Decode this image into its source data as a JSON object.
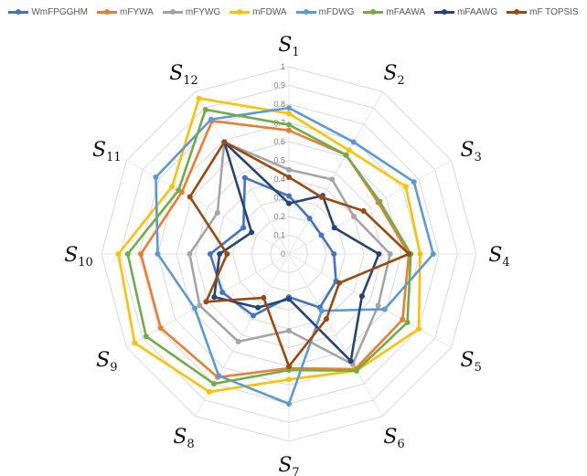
{
  "chart_data": {
    "type": "radar",
    "title": "",
    "categories": [
      "S1",
      "S2",
      "S3",
      "S4",
      "S5",
      "S6",
      "S7",
      "S8",
      "S9",
      "S10",
      "S11",
      "S12"
    ],
    "category_labels": [
      {
        "main": "S",
        "sub": "1"
      },
      {
        "main": "S",
        "sub": "2"
      },
      {
        "main": "S",
        "sub": "3"
      },
      {
        "main": "S",
        "sub": "4"
      },
      {
        "main": "S",
        "sub": "5"
      },
      {
        "main": "S",
        "sub": "6"
      },
      {
        "main": "S",
        "sub": "7"
      },
      {
        "main": "S",
        "sub": "8"
      },
      {
        "main": "S",
        "sub": "9"
      },
      {
        "main": "S",
        "sub": "10"
      },
      {
        "main": "S",
        "sub": "11"
      },
      {
        "main": "S",
        "sub": "12"
      }
    ],
    "rlim": [
      0,
      1
    ],
    "ticks": [
      "0",
      "0.1",
      "0.2",
      "0.3",
      "0.4",
      "0.5",
      "0.6",
      "0.7",
      "0.8",
      "0.9",
      "1"
    ],
    "grid": true,
    "legend_position": "top",
    "series": [
      {
        "name": "WmFPGGHM",
        "color": "#4472C4",
        "values": [
          0.31,
          0.22,
          0.2,
          0.24,
          0.29,
          0.33,
          0.23,
          0.38,
          0.41,
          0.42,
          0.28,
          0.47
        ]
      },
      {
        "name": "mFYWA",
        "color": "#ED7D31",
        "values": [
          0.66,
          0.61,
          0.55,
          0.64,
          0.7,
          0.71,
          0.61,
          0.76,
          0.79,
          0.79,
          0.66,
          0.82
        ]
      },
      {
        "name": "mFYWG",
        "color": "#A5A5A5",
        "values": [
          0.45,
          0.46,
          0.4,
          0.54,
          0.55,
          0.68,
          0.41,
          0.54,
          0.55,
          0.53,
          0.44,
          0.69
        ]
      },
      {
        "name": "mFDWA",
        "color": "#FFC000",
        "values": [
          0.75,
          0.64,
          0.72,
          0.7,
          0.8,
          0.72,
          0.67,
          0.85,
          0.95,
          0.91,
          0.72,
          0.96
        ]
      },
      {
        "name": "mFDWG",
        "color": "#5B9BD5",
        "values": [
          0.78,
          0.69,
          0.77,
          0.77,
          0.59,
          0.35,
          0.8,
          0.75,
          0.58,
          0.7,
          0.82,
          0.83
        ]
      },
      {
        "name": "mFAAWA",
        "color": "#70AD47",
        "values": [
          0.69,
          0.61,
          0.56,
          0.65,
          0.73,
          0.72,
          0.62,
          0.8,
          0.88,
          0.86,
          0.68,
          0.89
        ]
      },
      {
        "name": "mFAAWG",
        "color": "#264478",
        "values": [
          0.27,
          0.36,
          0.28,
          0.48,
          0.45,
          0.66,
          0.24,
          0.33,
          0.46,
          0.37,
          0.23,
          0.69
        ]
      },
      {
        "name": "mF TOPSIS",
        "color": "#9E480E",
        "values": [
          0.41,
          0.35,
          0.46,
          0.64,
          0.31,
          0.4,
          0.6,
          0.27,
          0.51,
          0.33,
          0.61,
          0.69
        ]
      }
    ]
  }
}
